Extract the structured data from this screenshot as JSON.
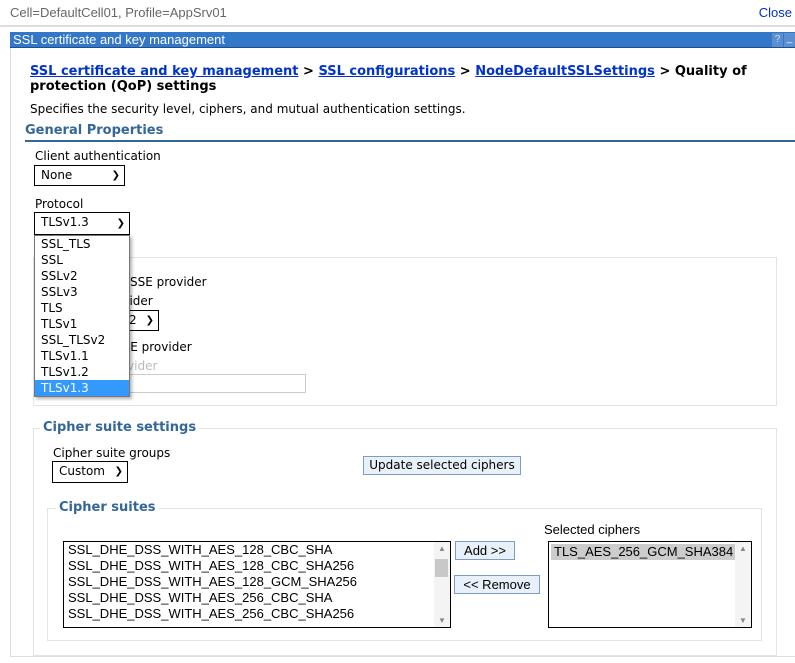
{
  "top": {
    "scope": "Cell=DefaultCell01, Profile=AppSrv01",
    "close": "Close"
  },
  "panel": {
    "title": "SSL certificate and key management",
    "help": "?",
    "minimize": "_"
  },
  "breadcrumb": {
    "links": [
      "SSL certificate and key management",
      "SSL configurations",
      "NodeDefaultSSLSettings"
    ],
    "sep": " > ",
    "current": "Quality of protection (QoP) settings"
  },
  "description": "Specifies the security level, ciphers, and mutual authentication settings.",
  "section": "General Properties",
  "client_auth": {
    "label": "Client authentication",
    "value": "None"
  },
  "protocol": {
    "label": "Protocol",
    "value": "TLSv1.3",
    "options": [
      "SSL_TLS",
      "SSL",
      "SSLv2",
      "SSLv3",
      "TLS",
      "TLSv1",
      "SSL_TLSv2",
      "TLSv1.1",
      "TLSv1.2",
      "TLSv1.3"
    ]
  },
  "provider": {
    "predefined": "d JSSE provider",
    "select_label": "ovider",
    "select_value": "2",
    "custom": "SSE provider",
    "custom_label": "rovider"
  },
  "cipher_settings": {
    "legend": "Cipher suite settings",
    "groups_label": "Cipher suite groups",
    "groups_value": "Custom",
    "update_button": "Update selected ciphers"
  },
  "cipher_suites": {
    "legend": "Cipher suites",
    "available": [
      "SSL_DHE_DSS_WITH_AES_128_CBC_SHA",
      "SSL_DHE_DSS_WITH_AES_128_CBC_SHA256",
      "SSL_DHE_DSS_WITH_AES_128_GCM_SHA256",
      "SSL_DHE_DSS_WITH_AES_256_CBC_SHA",
      "SSL_DHE_DSS_WITH_AES_256_CBC_SHA256"
    ],
    "add": "Add >>",
    "remove": "<< Remove",
    "selected_label": "Selected ciphers",
    "selected": [
      "TLS_AES_256_GCM_SHA384"
    ]
  },
  "colors": {
    "header": "#3377c8",
    "link": "#0033cc",
    "section": "#336699",
    "highlight": "#3399ff"
  }
}
